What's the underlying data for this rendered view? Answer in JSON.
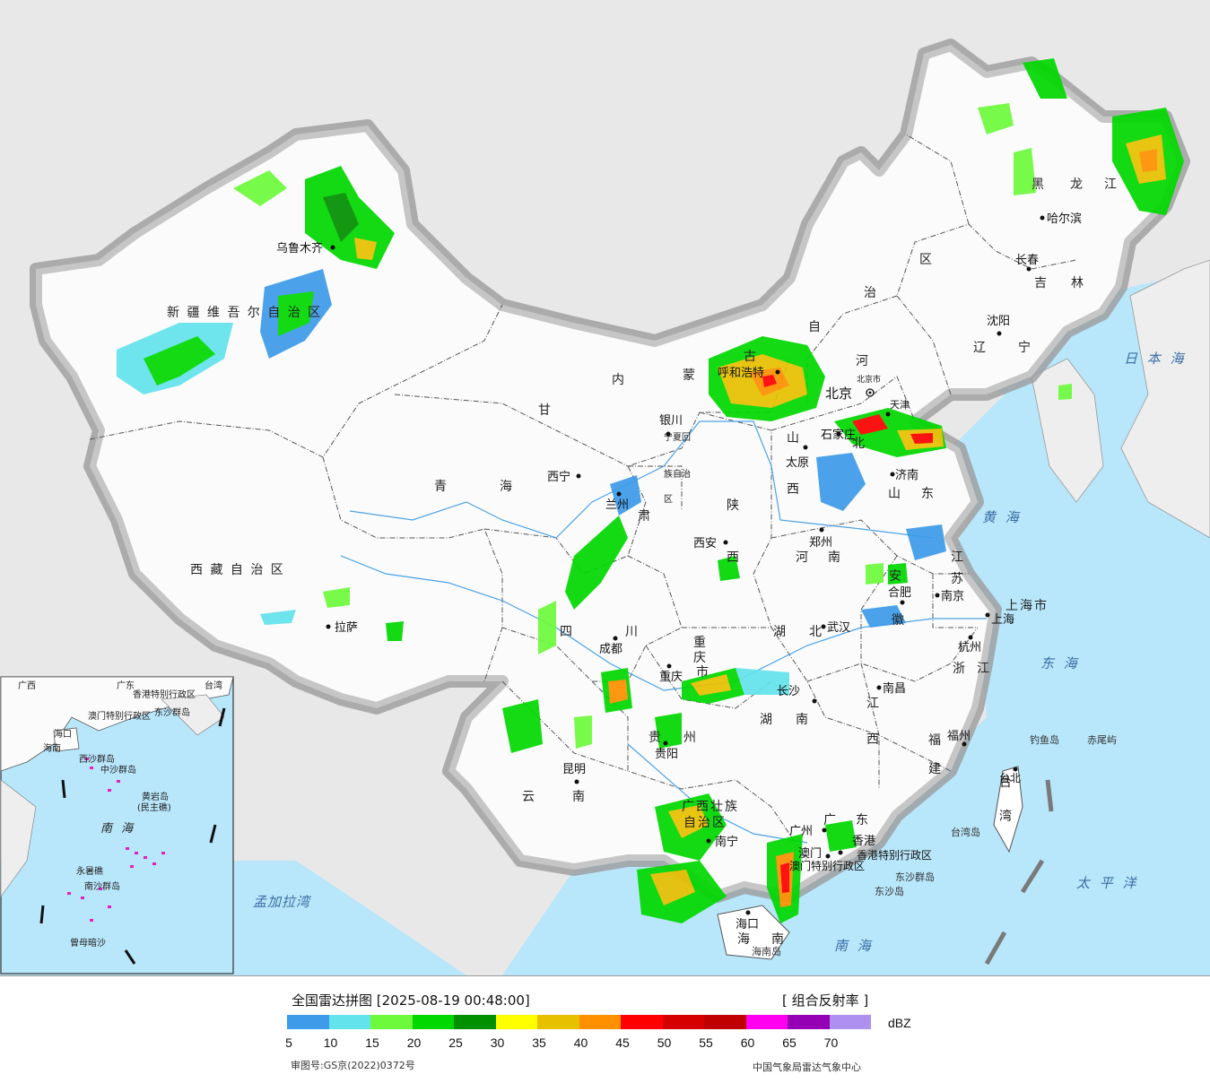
{
  "map": {
    "provinces": {
      "xinjiang": "新 疆 维 吾 尔 自 治 区",
      "tibet": "西 藏 自 治 区",
      "qinghai_1": "青",
      "qinghai_2": "海",
      "gansu_1": "甘",
      "gansu_2": "肃",
      "neimenggu_1": "内",
      "neimenggu_2": "蒙",
      "neimenggu_3": "古",
      "neimenggu_4": "自",
      "neimenggu_5": "治",
      "neimenggu_6": "区",
      "ningxia_1": "宁夏回",
      "ningxia_2": "族自治",
      "ningxia_3": "区",
      "heilongjiang_1": "黑",
      "heilongjiang_2": "龙",
      "heilongjiang_3": "江",
      "jilin_1": "吉",
      "jilin_2": "林",
      "liaoning_1": "辽",
      "liaoning_2": "宁",
      "hebei_1": "河",
      "hebei_2": "北",
      "shanxi_1": "山",
      "shanxi_2": "西",
      "shandong_1": "山",
      "shandong_2": "东",
      "henan_1": "河",
      "henan_2": "南",
      "shaanxi_1": "陕",
      "shaanxi_2": "西",
      "sichuan_1": "四",
      "sichuan_2": "川",
      "chongqing_1": "重",
      "chongqing_2": "庆",
      "chongqing_3": "市",
      "hubei_1": "湖",
      "hubei_2": "北",
      "hunan_1": "湖",
      "hunan_2": "南",
      "jiangsu_1": "江",
      "jiangsu_2": "苏",
      "anhui_1": "安",
      "anhui_2": "徽",
      "shanghai": "上海市",
      "zhejiang_1": "浙",
      "zhejiang_2": "江",
      "jiangxi_1": "江",
      "jiangxi_2": "西",
      "fujian_1": "福",
      "fujian_2": "建",
      "guizhou_1": "贵",
      "guizhou_2": "州",
      "yunnan_1": "云",
      "yunnan_2": "南",
      "guangxi_1": "广西壮族",
      "guangxi_2": "自治区",
      "guangdong_1": "广",
      "guangdong_2": "东",
      "hainan_1": "海",
      "hainan_2": "南",
      "taiwan_1": "台",
      "taiwan_2": "湾",
      "hongkong": "香港特别行政区",
      "macau": "澳门特别行政区",
      "beijing": "北京",
      "tianjin": "天津"
    },
    "cities": {
      "urumqi": "乌鲁木齐",
      "lhasa": "拉萨",
      "xining": "西宁",
      "lanzhou": "兰州",
      "yinchuan": "银川",
      "hohhot": "呼和浩特",
      "beijing_city": "北京市",
      "tianjin_city": "天津",
      "shijiazhuang": "石家庄",
      "taiyuan": "太原",
      "jinan": "济南",
      "zhengzhou": "郑州",
      "xian": "西安",
      "chengdu": "成都",
      "chongqing": "重庆",
      "wuhan": "武汉",
      "hefei": "合肥",
      "nanjing": "南京",
      "shanghai": "上海",
      "hangzhou": "杭州",
      "nanchang": "南昌",
      "changsha": "长沙",
      "fuzhou": "福州",
      "guiyang": "贵阳",
      "kunming": "昆明",
      "nanning": "南宁",
      "guangzhou": "广州",
      "hongkong": "香港",
      "macau": "澳门",
      "haikou": "海口",
      "taibei": "台北",
      "harbin": "哈尔滨",
      "changchun": "长春",
      "shenyang": "沈阳"
    },
    "seas": {
      "japan_sea": "日 本 海",
      "yellow_sea": "黄 海",
      "east_sea": "东 海",
      "south_sea": "南 海",
      "pacific": "太 平 洋",
      "bengal": "孟加拉湾"
    },
    "islands": {
      "diaoyu": "钓鱼岛",
      "chiwei": "赤尾屿",
      "taiwan_island": "台湾岛",
      "dongsha_qundao": "东沙群岛",
      "dongsha_dao": "东沙岛",
      "hainan_island": "海南岛"
    },
    "inset": {
      "south_sea": "南 海",
      "xisha": "西沙群岛",
      "zhongsha": "中沙群岛",
      "huangyan": "黄岩岛",
      "huangyan_alt": "(民主礁)",
      "yongshu": "永暑礁",
      "nansha": "南沙群岛",
      "zengmu": "曾母暗沙",
      "haikou": "海口",
      "dongsha": "东沙群岛",
      "hk": "香港特别行政区",
      "macau": "澳门特别行政区",
      "taiwan": "台湾",
      "guangdong": "广东",
      "hainan_label": "海南",
      "guangxi": "广西"
    }
  },
  "legend": {
    "title": "全国雷达拼图 [2025-08-19 00:48:00]",
    "type": "[ 组合反射率 ]",
    "unit": "dBZ",
    "colors": [
      "#3d9be9",
      "#63e3eb",
      "#6dfa3d",
      "#00d800",
      "#019000",
      "#ffff00",
      "#e7c000",
      "#ff9000",
      "#ff0000",
      "#d70000",
      "#c00000",
      "#ff00f0",
      "#9600b4",
      "#ad90f0"
    ],
    "ticks": [
      "5",
      "10",
      "15",
      "20",
      "25",
      "30",
      "35",
      "40",
      "45",
      "50",
      "55",
      "60",
      "65",
      "70"
    ],
    "review_no": "审图号:GS京(2022)0372号",
    "agency": "中国气象局雷达气象中心"
  }
}
